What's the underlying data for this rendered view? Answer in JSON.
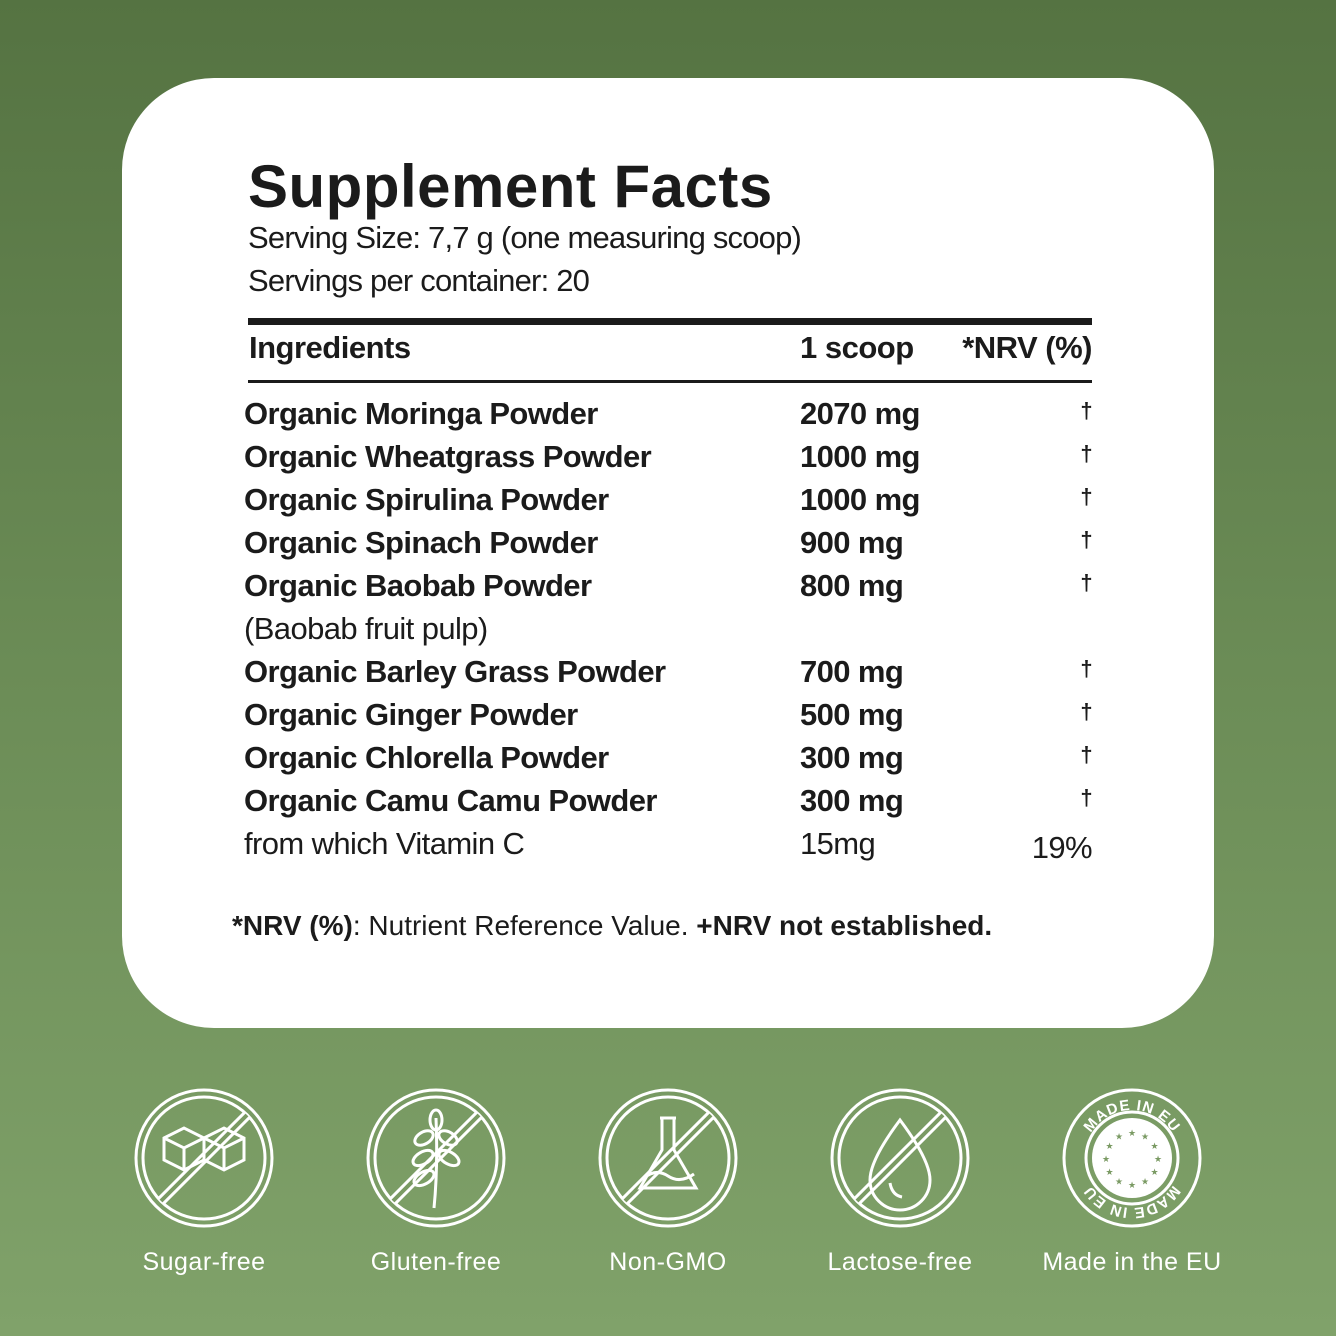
{
  "title": "Supplement Facts",
  "serving_size": "Serving Size:  7,7 g (one measuring scoop)",
  "servings_per_container": "Servings per container: 20",
  "table": {
    "headers": [
      "Ingredients",
      "1 scoop",
      "*NRV (%)"
    ],
    "rows": [
      {
        "name": "Organic Moringa Powder",
        "amount": "2070 mg",
        "nrv": "†"
      },
      {
        "name": "Organic Wheatgrass Powder",
        "amount": "1000 mg",
        "nrv": "†"
      },
      {
        "name": "Organic Spirulina Powder",
        "amount": "1000 mg",
        "nrv": "†"
      },
      {
        "name": "Organic Spinach Powder",
        "amount": "900 mg",
        "nrv": "†"
      },
      {
        "name": "Organic Baobab Powder",
        "amount": "800 mg",
        "nrv": "†"
      },
      {
        "name": "(Baobab fruit pulp)",
        "amount": "",
        "nrv": ""
      },
      {
        "name": "Organic Barley Grass Powder",
        "amount": "700 mg",
        "nrv": "†"
      },
      {
        "name": "Organic Ginger Powder",
        "amount": "500 mg",
        "nrv": "†"
      },
      {
        "name": "Organic Chlorella Powder",
        "amount": "300 mg",
        "nrv": "†"
      },
      {
        "name": "Organic Camu Camu Powder",
        "amount": "300 mg",
        "nrv": "†"
      },
      {
        "name": "from which Vitamin C",
        "amount": "15mg",
        "nrv": "19%"
      }
    ]
  },
  "footnote": {
    "term": "*NRV (%)",
    "definition": ": Nutrient Reference Value. ",
    "note": "+NRV not established."
  },
  "badges": [
    {
      "label": "Sugar-free",
      "icon": "sugar-cube-crossed-icon"
    },
    {
      "label": "Gluten-free",
      "icon": "wheat-crossed-icon"
    },
    {
      "label": "Non-GMO",
      "icon": "flask-crossed-icon"
    },
    {
      "label": "Lactose-free",
      "icon": "drop-crossed-icon"
    },
    {
      "label": "Made in the EU",
      "icon": "eu-stars-seal-icon",
      "seal_text": "MADE IN EU"
    }
  ],
  "colors": {
    "background_top": "#557342",
    "background_bottom": "#80a26a",
    "card": "#ffffff",
    "text": "#1b1b1b"
  }
}
